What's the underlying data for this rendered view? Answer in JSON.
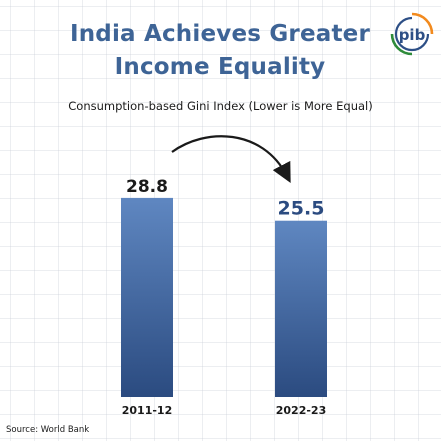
{
  "header": {
    "title_line_1": "India Achieves Greater",
    "title_line_2": "Income Equality",
    "subtitle": "Consumption-based Gini Index (Lower is More Equal)"
  },
  "footer": {
    "source_label": "Source:",
    "source_value": "World Bank"
  },
  "logo": {
    "text": "pib",
    "icon": "pib-logo-icon",
    "colors": {
      "saffron": "#f28a1e",
      "green": "#2e8b3a",
      "navy": "#2d4f86"
    }
  },
  "chart_data": {
    "type": "bar",
    "title": "Consumption-based Gini Index (Lower is More Equal)",
    "categories": [
      "2011-12",
      "2022-23"
    ],
    "values": [
      28.8,
      25.5
    ],
    "data_labels": [
      "28.8",
      "25.5"
    ],
    "xlabel": "",
    "ylabel": "",
    "ylim": [
      0,
      31.1
    ],
    "grid": true,
    "annotation": "curved-arrow-from-first-to-second-bar",
    "colors": {
      "bar_top": "#5f87c1",
      "bar_bottom": "#2b4b80",
      "title": "#3e6496",
      "label": "#1a1a1a"
    }
  }
}
